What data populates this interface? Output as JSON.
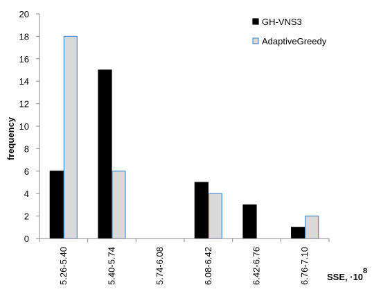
{
  "chart_data": {
    "type": "bar",
    "title": "",
    "xlabel": "SSE, ·10",
    "xlabel_exponent": "8",
    "ylabel": "frequency",
    "ylim": [
      0,
      20
    ],
    "yticks": [
      0,
      2,
      4,
      6,
      8,
      10,
      12,
      14,
      16,
      18,
      20
    ],
    "grid": false,
    "legend_position": "top-right",
    "categories": [
      "5.26-5.40",
      "5.40-5.74",
      "5.74-6.08",
      "6.08-6.42",
      "6.42-6.76",
      "6.76-7.10"
    ],
    "series": [
      {
        "name": "GH-VNS3",
        "values": [
          6,
          15,
          0,
          5,
          3,
          1
        ],
        "fill": "#000000",
        "stroke": "#000000"
      },
      {
        "name": "AdaptiveGreedy",
        "values": [
          18,
          6,
          0,
          4,
          0,
          2
        ],
        "fill": "#d9d9d9",
        "stroke": "#4a8fd4"
      }
    ]
  }
}
